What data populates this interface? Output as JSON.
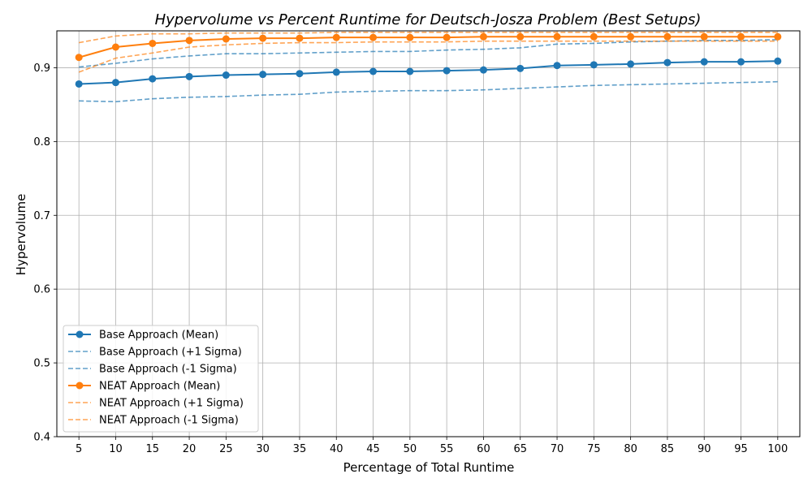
{
  "chart_data": {
    "type": "line",
    "title": "Hypervolume vs Percent Runtime for Deutsch-Josza Problem (Best Setups)",
    "xlabel": "Percentage of Total Runtime",
    "ylabel": "Hypervolume",
    "x": [
      5,
      10,
      15,
      20,
      25,
      30,
      35,
      40,
      45,
      50,
      55,
      60,
      65,
      70,
      75,
      80,
      85,
      90,
      95,
      100
    ],
    "ylim": [
      0.4,
      0.95
    ],
    "yticks": [
      0.4,
      0.5,
      0.6,
      0.7,
      0.8,
      0.9
    ],
    "grid": true,
    "legend_position": "lower-left",
    "series": [
      {
        "name": "Base Approach (Mean)",
        "color": "#1f77b4",
        "style": "solid-marker",
        "values": [
          0.878,
          0.88,
          0.885,
          0.888,
          0.89,
          0.891,
          0.892,
          0.894,
          0.895,
          0.895,
          0.896,
          0.897,
          0.899,
          0.903,
          0.904,
          0.905,
          0.907,
          0.908,
          0.908,
          0.909
        ]
      },
      {
        "name": "Base Approach (+1 Sigma)",
        "color": "#1f77b4",
        "style": "dashed",
        "values": [
          0.901,
          0.906,
          0.912,
          0.916,
          0.919,
          0.919,
          0.92,
          0.921,
          0.922,
          0.922,
          0.924,
          0.925,
          0.927,
          0.932,
          0.933,
          0.935,
          0.936,
          0.937,
          0.937,
          0.938
        ]
      },
      {
        "name": "Base Approach (-1 Sigma)",
        "color": "#1f77b4",
        "style": "dashed",
        "values": [
          0.855,
          0.854,
          0.858,
          0.86,
          0.861,
          0.863,
          0.864,
          0.867,
          0.868,
          0.869,
          0.869,
          0.87,
          0.872,
          0.874,
          0.876,
          0.877,
          0.878,
          0.879,
          0.88,
          0.881
        ]
      },
      {
        "name": "NEAT Approach (Mean)",
        "color": "#ff7f0e",
        "style": "solid-marker",
        "values": [
          0.914,
          0.928,
          0.933,
          0.937,
          0.939,
          0.94,
          0.94,
          0.941,
          0.941,
          0.941,
          0.941,
          0.942,
          0.942,
          0.942,
          0.942,
          0.942,
          0.942,
          0.942,
          0.942,
          0.942
        ]
      },
      {
        "name": "NEAT Approach (+1 Sigma)",
        "color": "#ff7f0e",
        "style": "dashed",
        "values": [
          0.934,
          0.943,
          0.946,
          0.946,
          0.947,
          0.947,
          0.947,
          0.948,
          0.948,
          0.948,
          0.948,
          0.948,
          0.948,
          0.948,
          0.948,
          0.948,
          0.948,
          0.948,
          0.948,
          0.948
        ]
      },
      {
        "name": "NEAT Approach (-1 Sigma)",
        "color": "#ff7f0e",
        "style": "dashed",
        "values": [
          0.894,
          0.913,
          0.92,
          0.928,
          0.931,
          0.933,
          0.934,
          0.934,
          0.935,
          0.935,
          0.935,
          0.936,
          0.936,
          0.936,
          0.936,
          0.936,
          0.936,
          0.936,
          0.936,
          0.936
        ]
      }
    ]
  }
}
